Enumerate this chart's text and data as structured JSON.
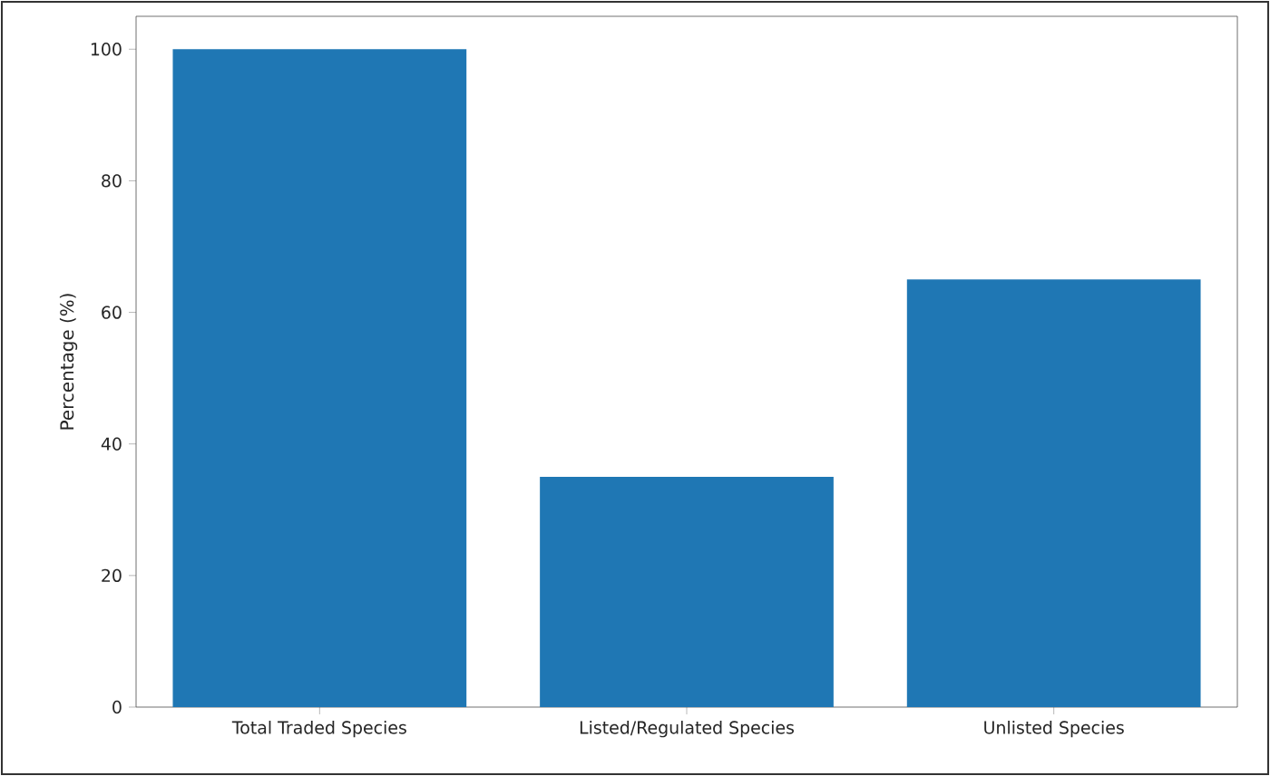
{
  "chart_data": {
    "type": "bar",
    "ylabel": "Percentage (%)",
    "categories": [
      "Total Traded Species",
      "Listed/Regulated Species",
      "Unlisted Species"
    ],
    "values": [
      100,
      35,
      65
    ],
    "color": "#1f77b4",
    "ylim": [
      0,
      105
    ],
    "yticks": [
      0,
      20,
      40,
      60,
      80,
      100
    ]
  }
}
